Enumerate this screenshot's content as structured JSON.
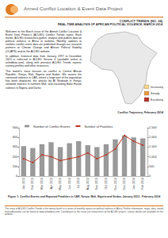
{
  "header": {
    "project": "Armed Conflict Location & Event Data Project",
    "issue": "CONFLICT TRENDS (NO. 24)",
    "subtitle": "REAL-TIME ANALYSIS OF AFRICAN POLITICAL VIOLENCE, MARCH 2014"
  },
  "body": [
    "Welcome to the March issue of the Armed Conflict Location & Event Data Project's (ACLED) Conflict Trends report. Each month, ACLED researchers gather, analyse and publish data on political violence in Africa in realtime. Monthly updates to realtime conflict event data are published through our research partners at Climate Change and African Political Stability (CCAPS) and on the ACLED website.",
    "In addition, historical data from January 1997 to December 2013 is collected in ACLED Version 4 (available online at acleddata.com), along with previous ACLED Trends reports, country profiles and other resources.",
    "This month's issue focuses on conflict in Central African Republic, Kenya, Mali, Nigeria and Sudan. We assess the continued violence in CAR, where a large part of the population has been displaced, the attacks by Al Shabaab in Kenya, renewed violence in northern Mali, and escalating Boko Haram violence in Nigeria and Darfur."
  ],
  "map": {
    "title": "Conflict Trajectory, February 2014",
    "legend": [
      {
        "label": "Increasing",
        "color": "#f3d38a"
      },
      {
        "label": "Steady",
        "color": "#e8983e"
      },
      {
        "label": "Escalating",
        "color": "#b8322a"
      }
    ]
  },
  "chart_data": {
    "type": "bar",
    "categories": [
      "Jan 2013",
      "Feb 2013",
      "Mar 2013",
      "Apr 2013",
      "May 2013",
      "Jun 2013",
      "Jul 2013",
      "Aug 2013",
      "Sep 2013",
      "Oct 2013",
      "Nov 2013",
      "Dec 2013",
      "Jan 2014",
      "Feb 2014"
    ],
    "series": [
      {
        "name": "Number of Conflict Events",
        "type": "bar",
        "color": "#9a9a9a",
        "values": [
          310,
          290,
          330,
          350,
          300,
          340,
          360,
          320,
          300,
          330,
          380,
          420,
          400,
          390
        ]
      },
      {
        "name": "Number of Fatalities",
        "type": "line",
        "color": "#c0392b",
        "axis": "y2",
        "values": [
          900,
          700,
          1100,
          1000,
          800,
          900,
          1000,
          1200,
          900,
          1100,
          1400,
          2100,
          1800,
          1600
        ]
      }
    ],
    "ylim": [
      0,
      500
    ],
    "yticks": [
      0,
      100,
      200,
      300,
      400,
      500
    ],
    "y2lim": [
      0,
      2500
    ],
    "y2ticks": [
      0,
      500,
      1000,
      1500,
      2000,
      2500
    ],
    "legend": "top-left",
    "grid": false
  },
  "caption": "Figure 1: Conflict Events and Reported Fatalities in CAR, Kenya, Mali, Nigeria and Sudan, January 2013 - February 2014",
  "footer": "This issue of ACLED Conflict Trends is the twenty-fourth in a series of monthly reports on political violence in Africa. Further information, maps, data, trends and publications can be found at www.acleddata.com. Contributors to this issue are researchers of the ACLED project; contact details are available on the website."
}
